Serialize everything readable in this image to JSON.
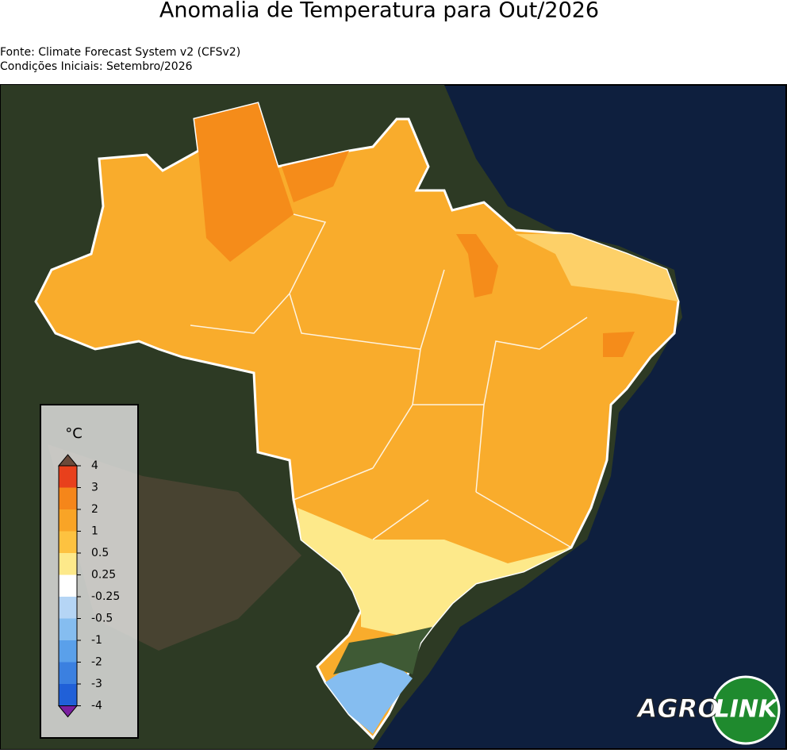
{
  "header": {
    "title": "Anomalia de Temperatura para Out/2026",
    "source": "Fonte: Climate Forecast System v2 (CFSv2)",
    "initial_conditions": "Condições Iniciais: Setembro/2026"
  },
  "colorbar": {
    "label": "°C",
    "ticks": [
      4,
      3,
      2,
      1,
      0.5,
      0.25,
      -0.25,
      -0.5,
      -1,
      -2,
      -3,
      -4
    ],
    "colors": [
      "#e8401c",
      "#f5861a",
      "#f9a426",
      "#fdc240",
      "#fde98a",
      "#ffffff",
      "#b5d5f5",
      "#85bdf0",
      "#5aa0ea",
      "#3b80e0",
      "#2060d8"
    ],
    "over_color": "#6b4a3a",
    "under_color": "#7a1fa0"
  },
  "logo": {
    "left": "AGRO",
    "right": "LINK"
  }
}
